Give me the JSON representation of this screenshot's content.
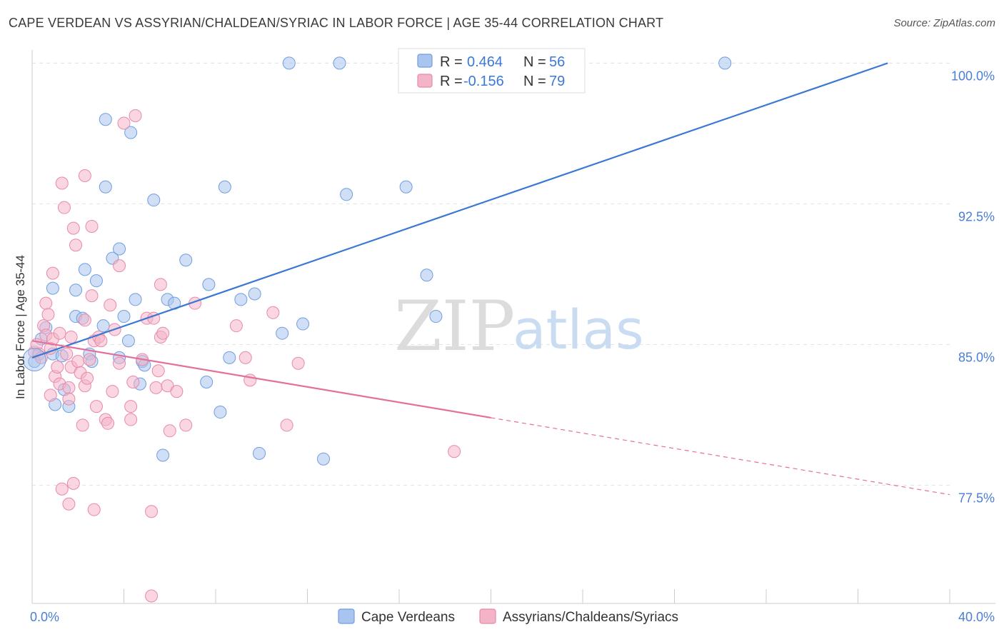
{
  "title": "CAPE VERDEAN VS ASSYRIAN/CHALDEAN/SYRIAC IN LABOR FORCE | AGE 35-44 CORRELATION CHART",
  "source": "Source: ZipAtlas.com",
  "watermark": {
    "zip": "ZIP",
    "atlas": "atlas"
  },
  "legend": {
    "rows": [
      {
        "r_label": "R =",
        "r_value": "0.464",
        "n_label": "N =",
        "n_value": "56",
        "color": "#a9c4ef"
      },
      {
        "r_label": "R =",
        "r_value": "-0.156",
        "n_label": "N =",
        "n_value": "79",
        "color": "#f4b4c8"
      }
    ]
  },
  "bottom_legend": [
    {
      "label": "Cape Verdeans",
      "color": "#a9c4ef"
    },
    {
      "label": "Assyrians/Chaldeans/Syriacs",
      "color": "#f4b4c8"
    }
  ],
  "chart_data": {
    "type": "scatter",
    "title": "CAPE VERDEAN VS ASSYRIAN/CHALDEAN/SYRIAC IN LABOR FORCE | AGE 35-44 CORRELATION CHART",
    "ylabel": "In Labor Force | Age 35-44",
    "xlabel": "",
    "xlim": [
      0,
      40
    ],
    "ylim": [
      71.2,
      100.7
    ],
    "x_tick_labels": [
      {
        "value": 0,
        "label": "0.0%"
      },
      {
        "value": 40,
        "label": "40.0%"
      }
    ],
    "y_tick_labels": [
      {
        "value": 100,
        "label": "100.0%"
      },
      {
        "value": 92.5,
        "label": "92.5%"
      },
      {
        "value": 85,
        "label": "85.0%"
      },
      {
        "value": 77.5,
        "label": "77.5%"
      }
    ],
    "grid": true,
    "legend_position": "top-center",
    "series": [
      {
        "name": "Cape Verdeans",
        "color": "#a9c4ef",
        "stroke": "#6f9ee0",
        "trend": {
          "x": [
            0,
            37.3
          ],
          "y": [
            84.3,
            100.0
          ],
          "color": "#3a78d4"
        },
        "points": [
          [
            0.1,
            84.1
          ],
          [
            0.4,
            85.3
          ],
          [
            0.6,
            85.9
          ],
          [
            0.9,
            84.5
          ],
          [
            0.9,
            88.0
          ],
          [
            1.0,
            81.8
          ],
          [
            1.3,
            84.4
          ],
          [
            1.4,
            82.6
          ],
          [
            1.6,
            81.7
          ],
          [
            1.9,
            87.9
          ],
          [
            1.9,
            86.5
          ],
          [
            2.2,
            86.4
          ],
          [
            2.3,
            89.0
          ],
          [
            2.5,
            84.5
          ],
          [
            2.6,
            84.1
          ],
          [
            2.8,
            88.4
          ],
          [
            3.1,
            86.0
          ],
          [
            3.2,
            97.0
          ],
          [
            3.2,
            93.4
          ],
          [
            3.5,
            89.6
          ],
          [
            3.8,
            90.1
          ],
          [
            3.8,
            84.3
          ],
          [
            4.0,
            86.5
          ],
          [
            4.2,
            85.2
          ],
          [
            4.3,
            96.3
          ],
          [
            4.5,
            87.4
          ],
          [
            4.7,
            82.9
          ],
          [
            4.8,
            84.1
          ],
          [
            4.9,
            83.9
          ],
          [
            5.3,
            92.7
          ],
          [
            5.7,
            79.1
          ],
          [
            5.9,
            87.4
          ],
          [
            6.2,
            87.2
          ],
          [
            6.7,
            89.5
          ],
          [
            7.6,
            83.0
          ],
          [
            7.7,
            88.2
          ],
          [
            8.2,
            81.4
          ],
          [
            8.4,
            93.4
          ],
          [
            8.6,
            84.3
          ],
          [
            9.1,
            87.4
          ],
          [
            9.7,
            87.7
          ],
          [
            9.9,
            79.2
          ],
          [
            10.9,
            85.6
          ],
          [
            11.2,
            100.0
          ],
          [
            11.8,
            86.1
          ],
          [
            12.7,
            78.9
          ],
          [
            13.4,
            100.0
          ],
          [
            13.7,
            93.0
          ],
          [
            16.3,
            93.4
          ],
          [
            17.2,
            88.7
          ],
          [
            17.6,
            86.5
          ],
          [
            30.2,
            100.0
          ]
        ]
      },
      {
        "name": "Assyrians/Chaldeans/Syriacs",
        "color": "#f4b4c8",
        "stroke": "#e88aa8",
        "trend": {
          "x": [
            0,
            20.0
          ],
          "y": [
            85.2,
            81.1
          ],
          "color": "#e3709a"
        },
        "trend_dashed": {
          "x": [
            20.0,
            40.0
          ],
          "y": [
            81.1,
            77.0
          ]
        },
        "points": [
          [
            0.1,
            84.6
          ],
          [
            0.2,
            85.0
          ],
          [
            0.3,
            84.5
          ],
          [
            0.4,
            84.3
          ],
          [
            0.5,
            86.0
          ],
          [
            0.6,
            85.5
          ],
          [
            0.6,
            87.2
          ],
          [
            0.7,
            86.6
          ],
          [
            0.8,
            84.8
          ],
          [
            0.8,
            82.3
          ],
          [
            0.9,
            88.8
          ],
          [
            0.9,
            85.3
          ],
          [
            1.0,
            83.3
          ],
          [
            1.1,
            83.8
          ],
          [
            1.2,
            85.6
          ],
          [
            1.2,
            82.9
          ],
          [
            1.3,
            77.3
          ],
          [
            1.3,
            93.6
          ],
          [
            1.4,
            92.3
          ],
          [
            1.5,
            84.5
          ],
          [
            1.6,
            82.7
          ],
          [
            1.6,
            82.1
          ],
          [
            1.6,
            76.5
          ],
          [
            1.7,
            83.8
          ],
          [
            1.7,
            85.4
          ],
          [
            1.8,
            91.2
          ],
          [
            1.8,
            77.6
          ],
          [
            1.9,
            90.3
          ],
          [
            2.0,
            84.1
          ],
          [
            2.1,
            83.5
          ],
          [
            2.2,
            80.7
          ],
          [
            2.3,
            86.3
          ],
          [
            2.3,
            94.0
          ],
          [
            2.3,
            82.8
          ],
          [
            2.4,
            83.2
          ],
          [
            2.5,
            84.2
          ],
          [
            2.6,
            87.6
          ],
          [
            2.6,
            91.3
          ],
          [
            2.7,
            85.2
          ],
          [
            2.7,
            76.2
          ],
          [
            2.8,
            81.7
          ],
          [
            2.9,
            85.4
          ],
          [
            3.0,
            85.2
          ],
          [
            3.2,
            81.0
          ],
          [
            3.3,
            80.8
          ],
          [
            3.4,
            87.1
          ],
          [
            3.5,
            82.5
          ],
          [
            3.6,
            85.8
          ],
          [
            3.8,
            84.0
          ],
          [
            3.8,
            89.2
          ],
          [
            4.0,
            96.8
          ],
          [
            4.3,
            81.7
          ],
          [
            4.3,
            81.0
          ],
          [
            4.4,
            83.0
          ],
          [
            4.5,
            97.2
          ],
          [
            4.8,
            84.2
          ],
          [
            5.0,
            86.4
          ],
          [
            5.2,
            76.1
          ],
          [
            5.3,
            86.4
          ],
          [
            5.4,
            82.7
          ],
          [
            5.5,
            83.6
          ],
          [
            5.6,
            88.2
          ],
          [
            5.6,
            85.4
          ],
          [
            5.7,
            85.6
          ],
          [
            5.9,
            82.8
          ],
          [
            6.0,
            80.4
          ],
          [
            6.3,
            82.5
          ],
          [
            6.7,
            80.7
          ],
          [
            7.1,
            87.2
          ],
          [
            8.9,
            86.0
          ],
          [
            9.3,
            84.3
          ],
          [
            9.5,
            83.1
          ],
          [
            10.5,
            86.7
          ],
          [
            11.1,
            80.7
          ],
          [
            11.6,
            84.0
          ],
          [
            18.4,
            79.3
          ],
          [
            5.2,
            71.6
          ]
        ]
      }
    ]
  }
}
